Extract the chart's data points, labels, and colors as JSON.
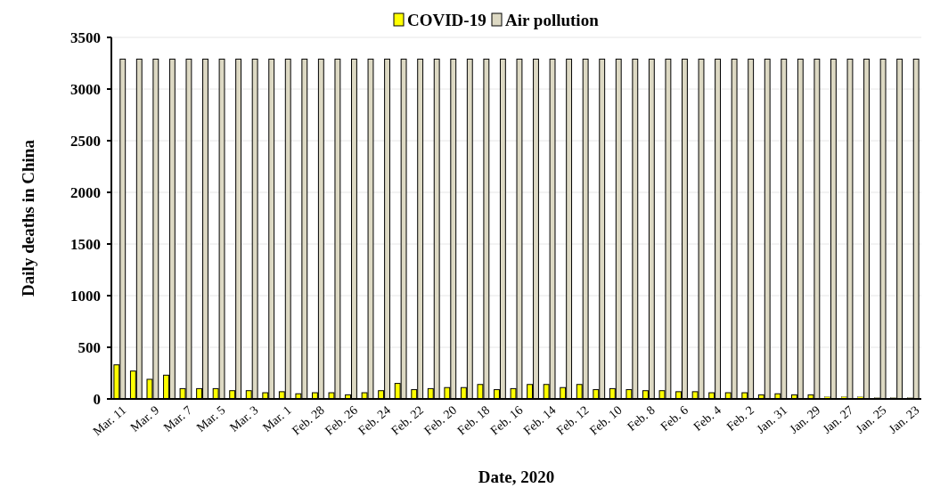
{
  "chart_data": {
    "type": "bar",
    "xlabel": "Date, 2020",
    "ylabel": "Daily deaths in China",
    "categories": [
      "Mar. 11",
      null,
      "Mar. 9",
      null,
      "Mar. 7",
      null,
      "Mar. 5",
      null,
      "Mar. 3",
      null,
      "Mar. 1",
      null,
      "Feb. 28",
      null,
      "Feb. 26",
      null,
      "Feb. 24",
      null,
      "Feb. 22",
      null,
      "Feb. 20",
      null,
      "Feb. 18",
      null,
      "Feb. 16",
      null,
      "Feb. 14",
      null,
      "Feb. 12",
      null,
      "Feb. 10",
      null,
      "Feb. 8",
      null,
      "Feb. 6",
      null,
      "Feb. 4",
      null,
      "Feb. 2",
      null,
      "Jan. 31",
      null,
      "Jan. 29",
      null,
      "Jan. 27",
      null,
      "Jan. 25",
      null,
      "Jan. 23"
    ],
    "series": [
      {
        "name": "COVID-19",
        "color": "#ffff00",
        "values": [
          330,
          270,
          190,
          230,
          100,
          100,
          100,
          80,
          80,
          60,
          70,
          50,
          60,
          60,
          40,
          60,
          80,
          150,
          90,
          100,
          110,
          110,
          140,
          90,
          100,
          140,
          140,
          110,
          140,
          90,
          100,
          90,
          80,
          80,
          70,
          70,
          60,
          60,
          60,
          40,
          50,
          40,
          40,
          20,
          20,
          20,
          10,
          10,
          10
        ]
      },
      {
        "name": "Air pollution",
        "color": "#ddd9c3",
        "values": [
          3290,
          3290,
          3290,
          3290,
          3290,
          3290,
          3290,
          3290,
          3290,
          3290,
          3290,
          3290,
          3290,
          3290,
          3290,
          3290,
          3290,
          3290,
          3290,
          3290,
          3290,
          3290,
          3290,
          3290,
          3290,
          3290,
          3290,
          3290,
          3290,
          3290,
          3290,
          3290,
          3290,
          3290,
          3290,
          3290,
          3290,
          3290,
          3290,
          3290,
          3290,
          3290,
          3290,
          3290,
          3290,
          3290,
          3290,
          3290,
          3290
        ]
      }
    ],
    "ylim": [
      0,
      3500
    ],
    "yticks": [
      0,
      500,
      1000,
      1500,
      2000,
      2500,
      3000,
      3500
    ],
    "grid": "y",
    "legend": "top"
  }
}
